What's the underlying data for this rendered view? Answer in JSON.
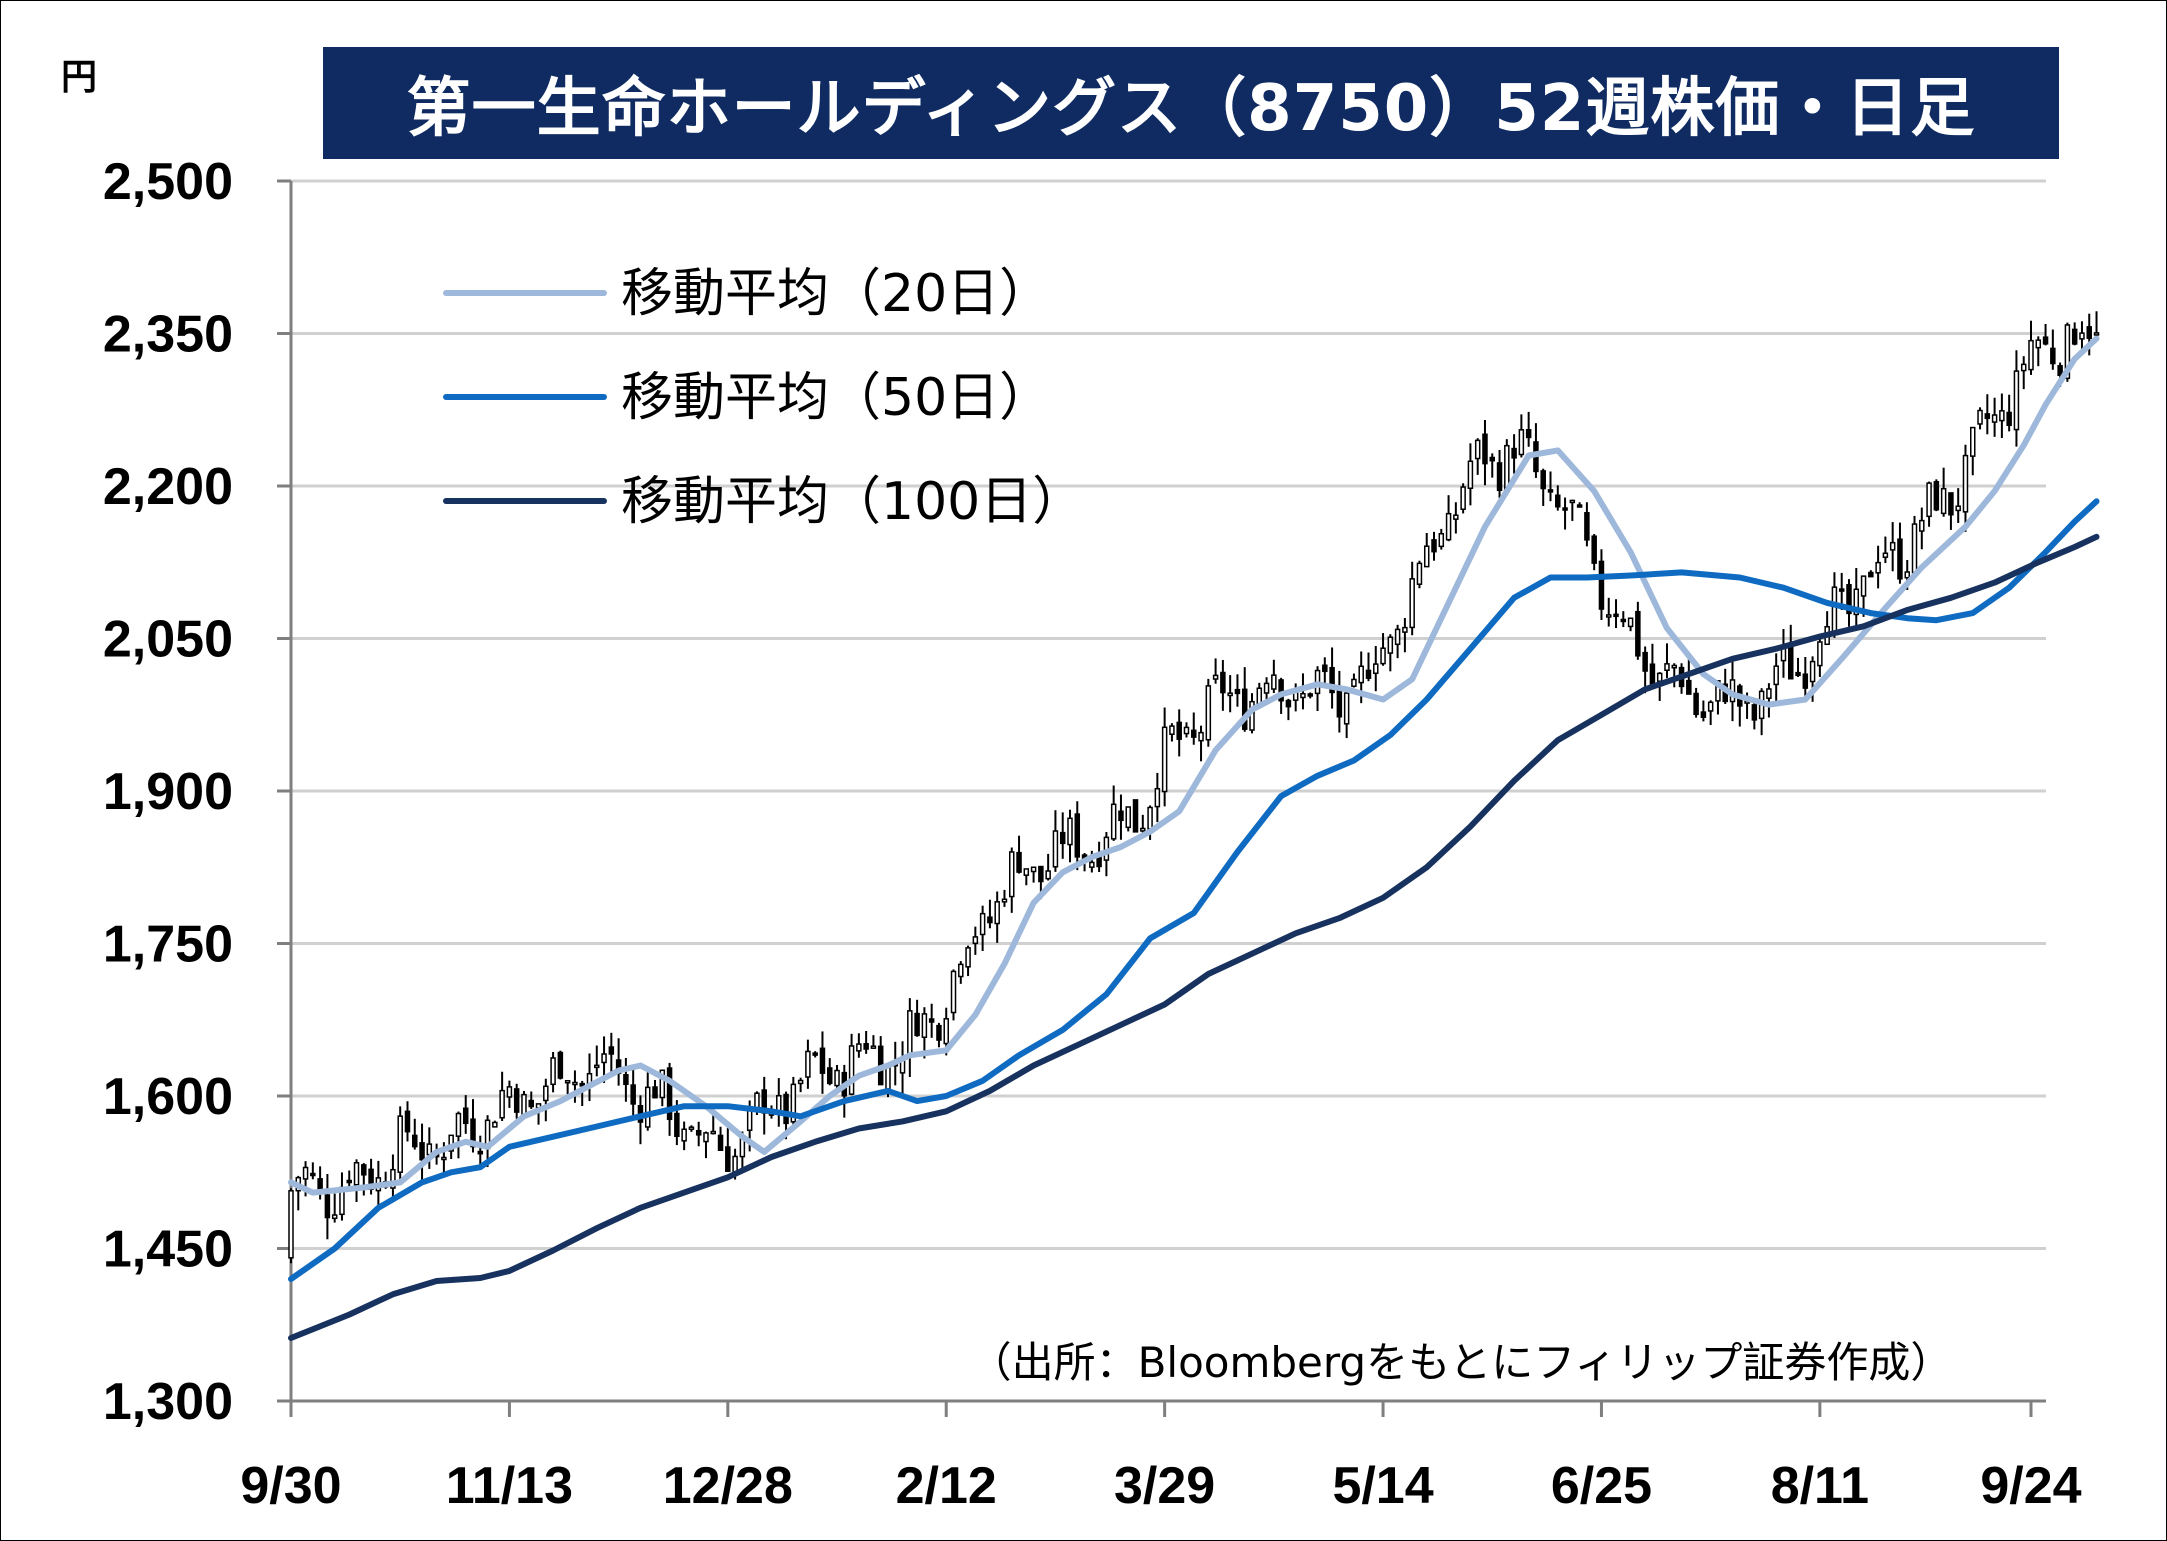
{
  "chart_data": {
    "type": "line",
    "subtype": "candlestick with moving averages",
    "title": "第一生命ホールディングス（8750）52週株価・日足",
    "unit_label": "円",
    "source_note": "（出所：Bloombergをもとにフィリップ証券作成）",
    "y_ticks": [
      "2,500",
      "2,350",
      "2,200",
      "2,050",
      "1,900",
      "1,750",
      "1,600",
      "1,450",
      "1,300"
    ],
    "y_tick_values": [
      2500,
      2350,
      2200,
      2050,
      1900,
      1750,
      1600,
      1450,
      1300
    ],
    "ylim": [
      1300,
      2500
    ],
    "x_ticks": [
      "9/30",
      "11/13",
      "12/28",
      "2/12",
      "3/29",
      "5/14",
      "6/25",
      "8/11",
      "9/24"
    ],
    "x_tick_sessions": [
      0,
      30,
      60,
      90,
      120,
      150,
      180,
      210,
      239
    ],
    "grid": "horizontal",
    "legend_position": "top-left",
    "series": [
      {
        "name": "移動平均（20日）",
        "color": "#9db8da",
        "points": [
          [
            0,
            1515
          ],
          [
            3,
            1505
          ],
          [
            10,
            1510
          ],
          [
            15,
            1515
          ],
          [
            20,
            1545
          ],
          [
            24,
            1555
          ],
          [
            27,
            1550
          ],
          [
            32,
            1580
          ],
          [
            37,
            1595
          ],
          [
            41,
            1610
          ],
          [
            45,
            1625
          ],
          [
            48,
            1630
          ],
          [
            52,
            1615
          ],
          [
            57,
            1590
          ],
          [
            62,
            1560
          ],
          [
            65,
            1545
          ],
          [
            70,
            1575
          ],
          [
            74,
            1600
          ],
          [
            78,
            1620
          ],
          [
            82,
            1630
          ],
          [
            85,
            1640
          ],
          [
            90,
            1645
          ],
          [
            94,
            1680
          ],
          [
            98,
            1730
          ],
          [
            102,
            1790
          ],
          [
            106,
            1820
          ],
          [
            110,
            1835
          ],
          [
            114,
            1845
          ],
          [
            118,
            1860
          ],
          [
            122,
            1880
          ],
          [
            127,
            1940
          ],
          [
            132,
            1980
          ],
          [
            136,
            1995
          ],
          [
            141,
            2005
          ],
          [
            145,
            2000
          ],
          [
            150,
            1990
          ],
          [
            154,
            2010
          ],
          [
            159,
            2085
          ],
          [
            164,
            2160
          ],
          [
            170,
            2230
          ],
          [
            174,
            2235
          ],
          [
            179,
            2195
          ],
          [
            184,
            2135
          ],
          [
            189,
            2060
          ],
          [
            194,
            2015
          ],
          [
            198,
            1995
          ],
          [
            203,
            1985
          ],
          [
            208,
            1990
          ],
          [
            213,
            2030
          ],
          [
            219,
            2080
          ],
          [
            224,
            2120
          ],
          [
            230,
            2160
          ],
          [
            234,
            2195
          ],
          [
            238,
            2240
          ],
          [
            241,
            2280
          ],
          [
            245,
            2325
          ],
          [
            248,
            2345
          ]
        ]
      },
      {
        "name": "移動平均（50日）",
        "color": "#0f6bc1",
        "points": [
          [
            0,
            1420
          ],
          [
            6,
            1450
          ],
          [
            12,
            1490
          ],
          [
            18,
            1515
          ],
          [
            22,
            1525
          ],
          [
            26,
            1530
          ],
          [
            30,
            1550
          ],
          [
            36,
            1560
          ],
          [
            42,
            1570
          ],
          [
            48,
            1580
          ],
          [
            54,
            1590
          ],
          [
            60,
            1590
          ],
          [
            66,
            1585
          ],
          [
            70,
            1580
          ],
          [
            76,
            1595
          ],
          [
            82,
            1605
          ],
          [
            86,
            1595
          ],
          [
            90,
            1600
          ],
          [
            95,
            1615
          ],
          [
            100,
            1640
          ],
          [
            106,
            1665
          ],
          [
            112,
            1700
          ],
          [
            118,
            1755
          ],
          [
            124,
            1780
          ],
          [
            130,
            1840
          ],
          [
            136,
            1895
          ],
          [
            141,
            1915
          ],
          [
            146,
            1930
          ],
          [
            151,
            1955
          ],
          [
            156,
            1990
          ],
          [
            162,
            2040
          ],
          [
            168,
            2090
          ],
          [
            173,
            2110
          ],
          [
            178,
            2110
          ],
          [
            184,
            2112
          ],
          [
            191,
            2115
          ],
          [
            199,
            2110
          ],
          [
            205,
            2100
          ],
          [
            211,
            2085
          ],
          [
            217,
            2075
          ],
          [
            222,
            2070
          ],
          [
            226,
            2068
          ],
          [
            231,
            2075
          ],
          [
            236,
            2100
          ],
          [
            241,
            2135
          ],
          [
            245,
            2165
          ],
          [
            248,
            2185
          ]
        ]
      },
      {
        "name": "移動平均（100日）",
        "color": "#17325f",
        "points": [
          [
            0,
            1362
          ],
          [
            8,
            1385
          ],
          [
            14,
            1405
          ],
          [
            20,
            1418
          ],
          [
            26,
            1421
          ],
          [
            30,
            1428
          ],
          [
            36,
            1448
          ],
          [
            42,
            1470
          ],
          [
            48,
            1490
          ],
          [
            54,
            1505
          ],
          [
            60,
            1520
          ],
          [
            66,
            1540
          ],
          [
            72,
            1555
          ],
          [
            78,
            1568
          ],
          [
            84,
            1575
          ],
          [
            90,
            1585
          ],
          [
            96,
            1605
          ],
          [
            102,
            1630
          ],
          [
            108,
            1650
          ],
          [
            114,
            1670
          ],
          [
            120,
            1690
          ],
          [
            126,
            1720
          ],
          [
            132,
            1740
          ],
          [
            138,
            1760
          ],
          [
            144,
            1775
          ],
          [
            150,
            1795
          ],
          [
            156,
            1825
          ],
          [
            162,
            1865
          ],
          [
            168,
            1910
          ],
          [
            174,
            1950
          ],
          [
            180,
            1975
          ],
          [
            186,
            2000
          ],
          [
            192,
            2015
          ],
          [
            198,
            2030
          ],
          [
            204,
            2040
          ],
          [
            210,
            2052
          ],
          [
            216,
            2062
          ],
          [
            222,
            2078
          ],
          [
            228,
            2090
          ],
          [
            234,
            2105
          ],
          [
            240,
            2125
          ],
          [
            245,
            2140
          ],
          [
            248,
            2150
          ]
        ]
      }
    ]
  }
}
